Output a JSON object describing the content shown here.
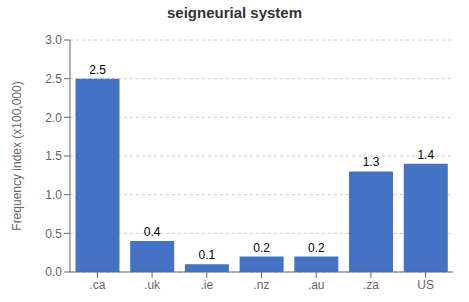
{
  "chart_data": {
    "type": "bar",
    "title": "seigneurial system",
    "categories": [
      ".ca",
      ".uk",
      ".ie",
      ".nz",
      ".au",
      ".za",
      "US"
    ],
    "values": [
      2.5,
      0.4,
      0.1,
      0.2,
      0.2,
      1.3,
      1.4
    ],
    "color": "#4472C4",
    "ylabel": "Frequency index (x100,000)",
    "ylim": [
      0.0,
      3.0
    ],
    "yticks": [
      {
        "value": 0.0,
        "label": "0.0"
      },
      0.5,
      {
        "value": 1.0,
        "label": "1.0"
      },
      1.5,
      {
        "value": 2.0,
        "label": "2.0"
      },
      2.5,
      {
        "value": 3.0,
        "label": "3.0"
      }
    ],
    "grid": true,
    "data_labels": true
  }
}
